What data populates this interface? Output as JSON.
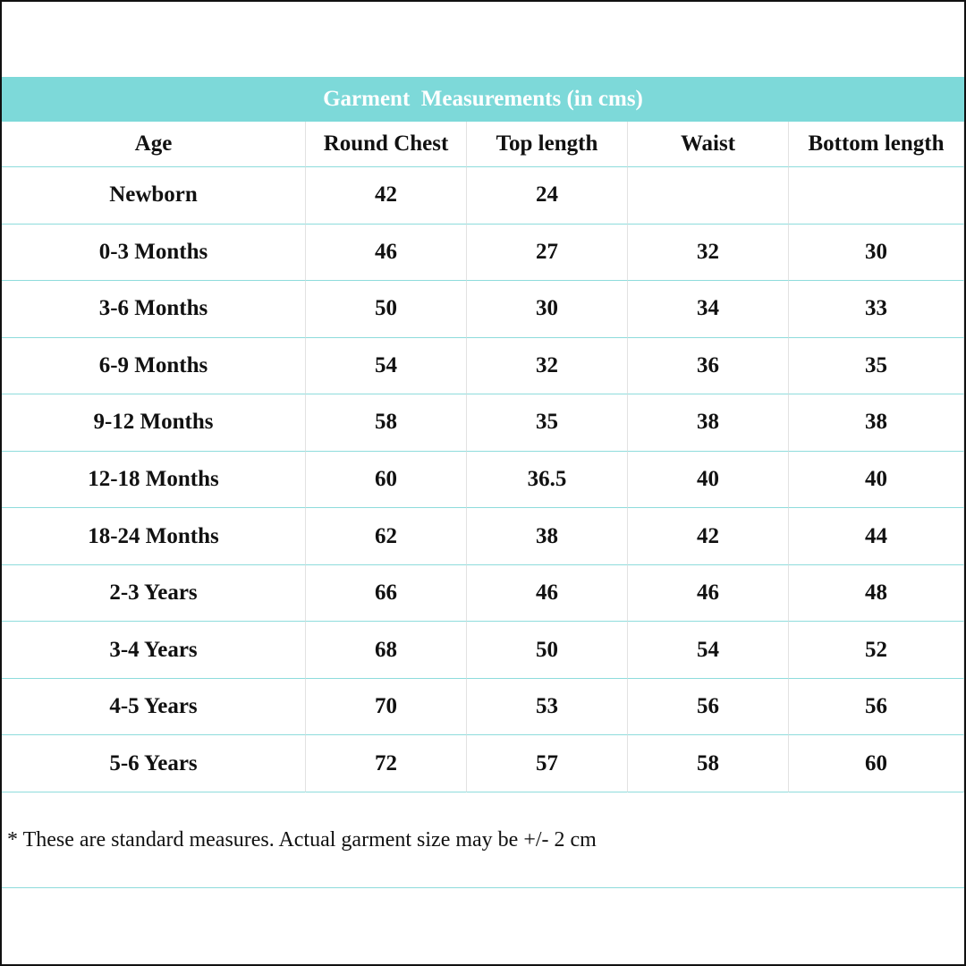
{
  "table": {
    "title": "Garment  Measurements (in cms)",
    "header": [
      "Age",
      "Round Chest",
      "Top length",
      "Waist",
      "Bottom length"
    ],
    "rows": [
      [
        "Newborn",
        "42",
        "24",
        null,
        null
      ],
      [
        "0-3 Months",
        "46",
        "27",
        "32",
        "30"
      ],
      [
        "3-6 Months",
        "50",
        "30",
        "34",
        "33"
      ],
      [
        "6-9 Months",
        "54",
        "32",
        "36",
        "35"
      ],
      [
        "9-12 Months",
        "58",
        "35",
        "38",
        "38"
      ],
      [
        "12-18 Months",
        "60",
        "36.5",
        "40",
        "40"
      ],
      [
        "18-24 Months",
        "62",
        "38",
        "42",
        "44"
      ],
      [
        "2-3 Years",
        "66",
        "46",
        "46",
        "48"
      ],
      [
        "3-4 Years",
        "68",
        "50",
        "54",
        "52"
      ],
      [
        "4-5 Years",
        "70",
        "53",
        "56",
        "56"
      ],
      [
        "5-6 Years",
        "72",
        "57",
        "58",
        "60"
      ]
    ],
    "footnote": "* These are standard measures. Actual garment size may be +/- 2 cm"
  }
}
